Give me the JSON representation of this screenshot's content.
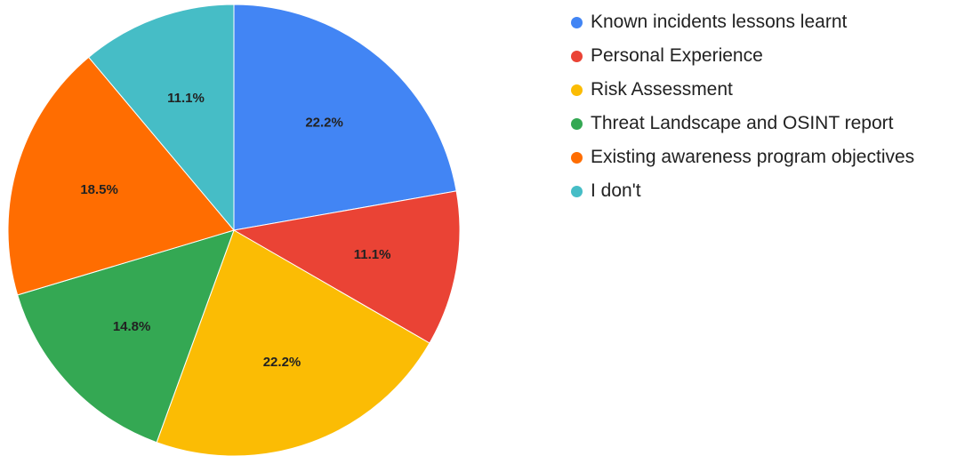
{
  "chart_data": {
    "type": "pie",
    "title": "",
    "start_angle_deg": 0,
    "direction": "clockwise",
    "legend_position": "right",
    "slices": [
      {
        "label": "Known incidents lessons learnt",
        "value": 22.2,
        "display": "22.2%",
        "color": "#4285F4"
      },
      {
        "label": "Personal Experience",
        "value": 11.1,
        "display": "11.1%",
        "color": "#EA4335"
      },
      {
        "label": "Risk Assessment",
        "value": 22.2,
        "display": "22.2%",
        "color": "#FBBC04"
      },
      {
        "label": "Threat Landscape and OSINT report",
        "value": 14.8,
        "display": "14.8%",
        "color": "#34A853"
      },
      {
        "label": "Existing awareness program objectives",
        "value": 18.5,
        "display": "18.5%",
        "color": "#FF6D01"
      },
      {
        "label": "I don't",
        "value": 11.1,
        "display": "11.1%",
        "color": "#46BDC6"
      }
    ]
  }
}
